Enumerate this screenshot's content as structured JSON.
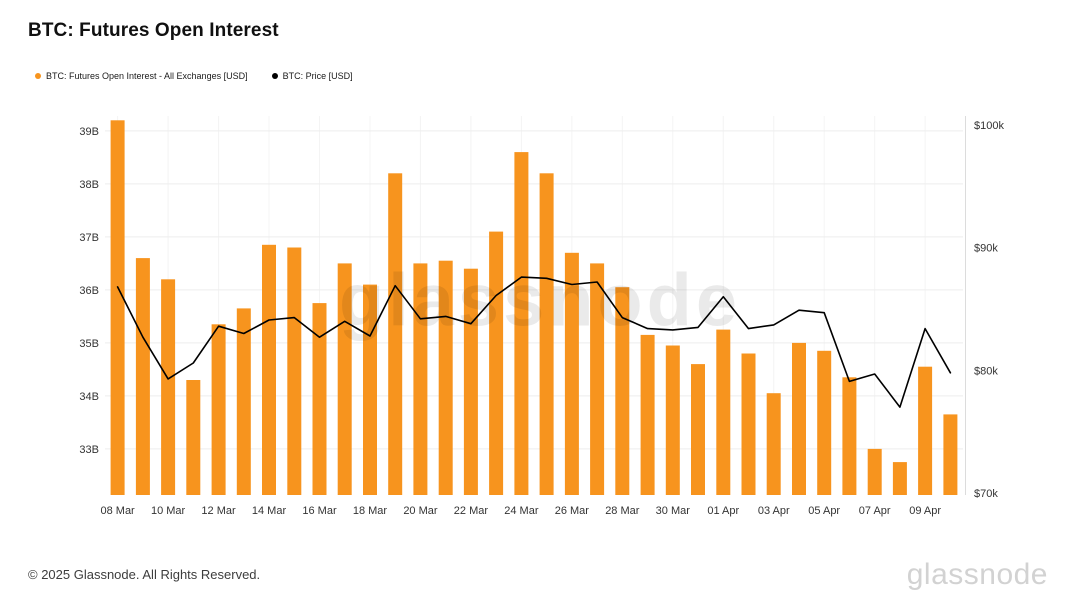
{
  "header": {
    "title": "BTC: Futures Open Interest"
  },
  "legend": {
    "items": [
      {
        "label": "BTC: Futures Open Interest - All Exchanges [USD]",
        "color": "#F7941E"
      },
      {
        "label": "BTC: Price [USD]",
        "color": "#000000"
      }
    ]
  },
  "watermark": {
    "text": "glassnode"
  },
  "footer": {
    "copyright": "© 2025 Glassnode. All Rights Reserved.",
    "logo_text": "glassnode"
  },
  "chart_data": {
    "type": "bar",
    "title": "BTC: Futures Open Interest",
    "legend_position": "top-left",
    "grid": true,
    "categories": [
      "08 Mar",
      "09 Mar",
      "10 Mar",
      "11 Mar",
      "12 Mar",
      "13 Mar",
      "14 Mar",
      "15 Mar",
      "16 Mar",
      "17 Mar",
      "18 Mar",
      "19 Mar",
      "20 Mar",
      "21 Mar",
      "22 Mar",
      "23 Mar",
      "24 Mar",
      "25 Mar",
      "26 Mar",
      "27 Mar",
      "28 Mar",
      "29 Mar",
      "30 Mar",
      "31 Mar",
      "01 Apr",
      "02 Apr",
      "03 Apr",
      "04 Apr",
      "05 Apr",
      "06 Apr",
      "07 Apr",
      "08 Apr",
      "09 Apr",
      "10 Apr"
    ],
    "x_tick_labels": [
      "08 Mar",
      "10 Mar",
      "12 Mar",
      "14 Mar",
      "16 Mar",
      "18 Mar",
      "20 Mar",
      "22 Mar",
      "24 Mar",
      "26 Mar",
      "28 Mar",
      "30 Mar",
      "01 Apr",
      "03 Apr",
      "05 Apr",
      "07 Apr",
      "09 Apr"
    ],
    "series": [
      {
        "name": "BTC: Futures Open Interest - All Exchanges [USD]",
        "type": "bar",
        "axis": "left",
        "color": "#F7941E",
        "unit": "billions USD",
        "values": [
          39.2,
          36.6,
          36.2,
          34.3,
          35.35,
          35.65,
          36.85,
          36.8,
          35.75,
          36.5,
          36.1,
          38.2,
          36.5,
          36.55,
          36.4,
          37.1,
          38.6,
          38.2,
          36.7,
          36.5,
          36.05,
          35.15,
          34.95,
          34.6,
          35.25,
          34.8,
          34.05,
          35.0,
          34.85,
          34.35,
          33.0,
          32.75,
          34.55,
          33.65
        ]
      },
      {
        "name": "BTC: Price [USD]",
        "type": "line",
        "axis": "right",
        "color": "#000000",
        "unit": "thousands USD",
        "values": [
          86.8,
          82.7,
          79.3,
          80.6,
          83.6,
          83.0,
          84.1,
          84.3,
          82.7,
          84.0,
          82.8,
          86.9,
          84.2,
          84.4,
          83.8,
          86.1,
          87.6,
          87.5,
          87.0,
          87.2,
          84.3,
          83.4,
          83.3,
          83.5,
          86.0,
          83.4,
          83.7,
          84.9,
          84.7,
          79.1,
          79.7,
          77.0,
          83.4,
          79.8
        ]
      }
    ],
    "left_axis": {
      "ticks": [
        "39B",
        "38B",
        "37B",
        "36B",
        "35B",
        "34B",
        "33B"
      ],
      "tick_values": [
        39,
        38,
        37,
        36,
        35,
        34,
        33
      ],
      "range_label": "33B to 39B"
    },
    "right_axis": {
      "ticks": [
        "$100k",
        "$90k",
        "$80k",
        "$70k"
      ],
      "tick_values": [
        100,
        90,
        80,
        70
      ],
      "range_label": "$70k to $100k"
    }
  }
}
